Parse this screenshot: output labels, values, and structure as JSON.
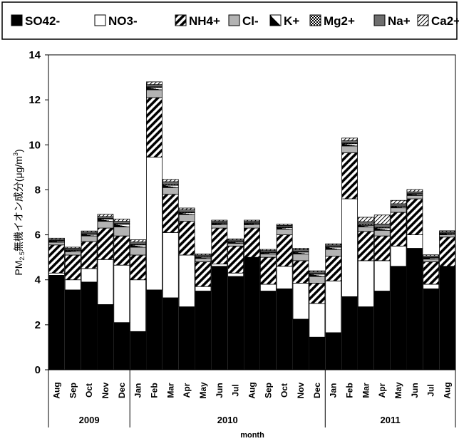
{
  "chart_data": {
    "type": "bar",
    "stacked": true,
    "xlabel": "month",
    "ylabel": "PM2.5無機イオン成分(μg/m3)",
    "ylabel_parts": {
      "prefix": "PM",
      "subscript": "2.5",
      "middle": "無機イオン成分(μg/m",
      "superscript": "3",
      "suffix": ")"
    },
    "ylim": [
      0,
      14
    ],
    "yticks": [
      0,
      2,
      4,
      6,
      8,
      10,
      12,
      14
    ],
    "grid": false,
    "legend_position": "top",
    "categories": [
      "Aug",
      "Sep",
      "Oct",
      "Nov",
      "Dec",
      "Jan",
      "Feb",
      "Mar",
      "Apr",
      "May",
      "Jun",
      "Jul",
      "Aug",
      "Sep",
      "Oct",
      "Nov",
      "Dec",
      "Jan",
      "Feb",
      "Mar",
      "Apr",
      "May",
      "Jun",
      "Jul",
      "Aug"
    ],
    "year_groups": [
      {
        "label": "2009",
        "count": 5
      },
      {
        "label": "2010",
        "count": 12
      },
      {
        "label": "2011",
        "count": 8
      }
    ],
    "series": [
      {
        "name": "SO42-",
        "pattern": "solid-black",
        "values": [
          4.2,
          3.55,
          3.9,
          2.9,
          2.1,
          1.7,
          3.55,
          3.2,
          2.8,
          3.5,
          4.6,
          4.15,
          5.0,
          3.5,
          3.6,
          2.25,
          1.45,
          1.65,
          3.25,
          2.8,
          3.5,
          4.6,
          5.4,
          3.6,
          4.6
        ]
      },
      {
        "name": "NO3-",
        "pattern": "white",
        "values": [
          0.1,
          0.45,
          0.6,
          2.0,
          2.55,
          2.3,
          5.9,
          2.9,
          2.3,
          0.2,
          0.1,
          0.15,
          0.0,
          0.3,
          1.0,
          1.6,
          1.5,
          2.3,
          4.35,
          2.05,
          1.35,
          0.9,
          0.6,
          0.2,
          0.0
        ]
      },
      {
        "name": "NH4+",
        "pattern": "diagonal",
        "values": [
          1.25,
          1.1,
          1.2,
          1.4,
          1.3,
          1.1,
          2.65,
          1.7,
          1.5,
          1.1,
          1.6,
          1.2,
          1.3,
          1.2,
          1.4,
          1.0,
          0.9,
          1.1,
          2.05,
          1.3,
          1.1,
          1.5,
          1.6,
          1.0,
          1.3
        ]
      },
      {
        "name": "Cl-",
        "pattern": "gray",
        "values": [
          0.12,
          0.15,
          0.25,
          0.3,
          0.4,
          0.35,
          0.35,
          0.3,
          0.3,
          0.15,
          0.15,
          0.12,
          0.15,
          0.15,
          0.25,
          0.3,
          0.3,
          0.3,
          0.3,
          0.2,
          0.25,
          0.2,
          0.15,
          0.12,
          0.1
        ]
      },
      {
        "name": "K+",
        "pattern": "half-triangle",
        "values": [
          0.05,
          0.05,
          0.07,
          0.1,
          0.12,
          0.1,
          0.1,
          0.1,
          0.08,
          0.05,
          0.05,
          0.05,
          0.05,
          0.05,
          0.07,
          0.08,
          0.1,
          0.1,
          0.1,
          0.07,
          0.1,
          0.05,
          0.05,
          0.05,
          0.05
        ]
      },
      {
        "name": "Mg2+",
        "pattern": "checker",
        "values": [
          0.03,
          0.03,
          0.03,
          0.03,
          0.03,
          0.03,
          0.03,
          0.04,
          0.03,
          0.03,
          0.03,
          0.03,
          0.03,
          0.03,
          0.03,
          0.03,
          0.03,
          0.03,
          0.03,
          0.04,
          0.03,
          0.03,
          0.03,
          0.02,
          0.03
        ]
      },
      {
        "name": "Na+",
        "pattern": "dark-gray",
        "values": [
          0.05,
          0.07,
          0.07,
          0.08,
          0.1,
          0.1,
          0.1,
          0.12,
          0.1,
          0.07,
          0.07,
          0.07,
          0.07,
          0.07,
          0.07,
          0.08,
          0.07,
          0.07,
          0.1,
          0.12,
          0.15,
          0.1,
          0.08,
          0.07,
          0.05
        ]
      },
      {
        "name": "Ca2+",
        "pattern": "light-hatch",
        "values": [
          0.05,
          0.05,
          0.05,
          0.1,
          0.1,
          0.1,
          0.12,
          0.1,
          0.08,
          0.05,
          0.05,
          0.05,
          0.05,
          0.05,
          0.05,
          0.06,
          0.05,
          0.05,
          0.12,
          0.2,
          0.4,
          0.15,
          0.1,
          0.05,
          0.05
        ]
      }
    ]
  }
}
